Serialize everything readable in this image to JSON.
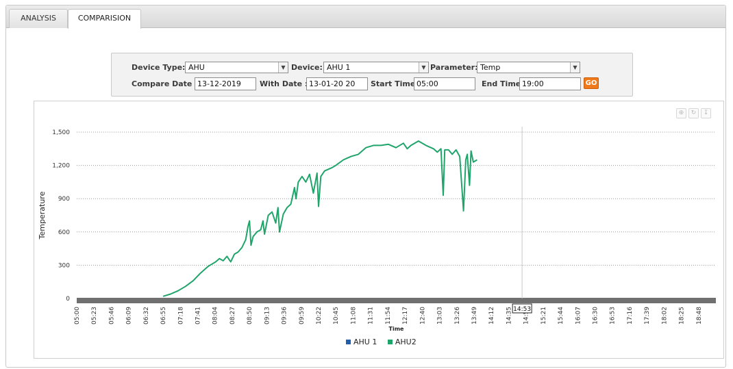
{
  "tabs": [
    {
      "label": "ANALYSIS",
      "active": false
    },
    {
      "label": "COMPARISION",
      "active": true
    }
  ],
  "filters": {
    "device_type_label": "Device Type:",
    "device_type_value": "AHU",
    "device_label": "Device:",
    "device_value": "AHU 1",
    "parameter_label": "Parameter:",
    "parameter_value": "Temp",
    "compare_date_label": "Compare Date :",
    "compare_date_value": "13-12-2019",
    "with_date_label": "With Date :",
    "with_date_value": "13-01-20 20",
    "start_time_label": "Start Time",
    "start_time_value": "05:00",
    "end_time_label": "End Time",
    "end_time_value": "19:00",
    "go_label": "GO"
  },
  "toolbar_icons": [
    "zoom-icon",
    "reset-zoom-icon",
    "export-icon"
  ],
  "colors": {
    "ahu1": "#1f5fae",
    "ahu2": "#1fa46a",
    "band": "#707070",
    "accent": "#f07a1a"
  },
  "chart_data": {
    "type": "line",
    "xlabel": "Time",
    "ylabel": "Temperature",
    "ylim": [
      0,
      1500
    ],
    "yticks": [
      0,
      300,
      600,
      900,
      1200,
      1500
    ],
    "ytick_labels": [
      "0",
      "300",
      "600",
      "900",
      "1,200",
      "1,500"
    ],
    "xtick_labels": [
      "05:00",
      "05:23",
      "05:46",
      "06:09",
      "06:32",
      "06:55",
      "07:18",
      "07:41",
      "08:04",
      "08:27",
      "08:50",
      "09:13",
      "09:36",
      "09:59",
      "10:22",
      "10:45",
      "11:08",
      "11:31",
      "11:54",
      "12:17",
      "12:40",
      "13:03",
      "13:26",
      "13:49",
      "14:12",
      "14:35",
      "14:58",
      "15:21",
      "15:44",
      "16:07",
      "16:30",
      "16:53",
      "17:16",
      "17:39",
      "18:02",
      "18:25",
      "18:48"
    ],
    "crosshair_label": "14:53",
    "grid": true,
    "legend_position": "bottom",
    "series": [
      {
        "name": "AHU 1",
        "x": [],
        "y": []
      },
      {
        "name": "AHU2",
        "x": [
          "06:55",
          "07:05",
          "07:15",
          "07:25",
          "07:35",
          "07:45",
          "07:55",
          "08:00",
          "08:05",
          "08:10",
          "08:15",
          "08:20",
          "08:25",
          "08:30",
          "08:35",
          "08:40",
          "08:45",
          "08:48",
          "08:50",
          "08:52",
          "08:55",
          "09:00",
          "09:05",
          "09:08",
          "09:10",
          "09:15",
          "09:20",
          "09:25",
          "09:28",
          "09:30",
          "09:35",
          "09:40",
          "09:45",
          "09:50",
          "09:52",
          "09:55",
          "10:00",
          "10:05",
          "10:10",
          "10:15",
          "10:20",
          "10:22",
          "10:25",
          "10:30",
          "10:40",
          "10:45",
          "10:55",
          "11:05",
          "11:15",
          "11:25",
          "11:35",
          "11:45",
          "11:55",
          "12:05",
          "12:15",
          "12:20",
          "12:25",
          "12:35",
          "12:45",
          "12:55",
          "13:00",
          "13:05",
          "13:08",
          "13:10",
          "13:15",
          "13:20",
          "13:25",
          "13:30",
          "13:35",
          "13:38",
          "13:40",
          "13:43",
          "13:45",
          "13:48",
          "13:53"
        ],
        "y": [
          20,
          40,
          70,
          110,
          160,
          230,
          290,
          310,
          330,
          360,
          340,
          380,
          330,
          400,
          420,
          460,
          530,
          650,
          700,
          480,
          560,
          600,
          620,
          700,
          580,
          750,
          780,
          680,
          820,
          600,
          760,
          820,
          850,
          1000,
          900,
          1050,
          1100,
          1050,
          1120,
          950,
          1130,
          830,
          1100,
          1150,
          1180,
          1200,
          1250,
          1280,
          1300,
          1360,
          1380,
          1380,
          1390,
          1360,
          1400,
          1350,
          1380,
          1420,
          1380,
          1350,
          1320,
          1350,
          930,
          1340,
          1340,
          1300,
          1340,
          1280,
          790,
          1250,
          1300,
          1020,
          1330,
          1230,
          1250
        ]
      }
    ]
  }
}
